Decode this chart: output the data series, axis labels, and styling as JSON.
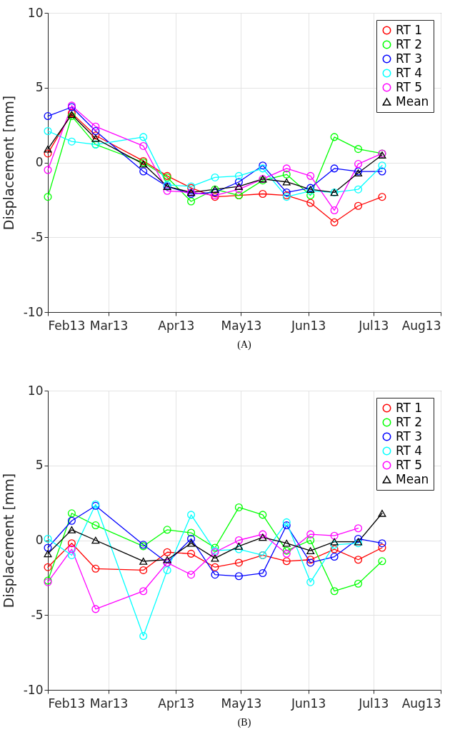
{
  "chart_data": [
    {
      "type": "line",
      "ylabel": "Displacement [mm]",
      "annotations": [
        "(A)"
      ],
      "grid": true,
      "legend": "top right",
      "marker": "circle",
      "x": [
        "2013-02-01",
        "2013-02-12",
        "2013-02-23",
        "2013-03-17",
        "2013-03-28",
        "2013-04-08",
        "2013-04-19",
        "2013-04-30",
        "2013-05-11",
        "2013-05-22",
        "2013-06-02",
        "2013-06-13",
        "2013-06-24",
        "2013-07-05"
      ],
      "xlim": [
        "2013-02-01",
        "2013-08-01"
      ],
      "xticks": [
        {
          "value": "2013-02",
          "label": "Feb13"
        },
        {
          "value": "2013-03",
          "label": "Mar13"
        },
        {
          "value": "2013-04",
          "label": "Apr13"
        },
        {
          "value": "2013-05",
          "label": "May13"
        },
        {
          "value": "2013-06",
          "label": "Jun13"
        },
        {
          "value": "2013-07",
          "label": "Jul13"
        },
        {
          "value": "2013-08",
          "label": "Aug13"
        }
      ],
      "ylim": [
        -10,
        10
      ],
      "yticks": [
        -10,
        -5,
        0,
        5,
        10
      ],
      "series": [
        {
          "name": "RT 1",
          "color": "#ff0000",
          "values": [
            0.6,
            3.3,
            1.8,
            0.1,
            -0.9,
            -1.7,
            -2.3,
            -2.2,
            -2.1,
            -2.2,
            -2.7,
            -4.0,
            -2.9,
            -2.3
          ]
        },
        {
          "name": "RT 2",
          "color": "#00ff00",
          "values": [
            -2.3,
            3.1,
            1.2,
            0.0,
            -1.0,
            -2.6,
            -1.8,
            -2.2,
            -1.2,
            -0.8,
            -2.2,
            1.7,
            0.9,
            0.6
          ]
        },
        {
          "name": "RT 3",
          "color": "#0000ff",
          "values": [
            3.1,
            3.7,
            2.1,
            -0.6,
            -1.6,
            -2.1,
            -2.0,
            -1.3,
            -0.2,
            -2.0,
            -1.7,
            -0.4,
            -0.6,
            -0.6
          ]
        },
        {
          "name": "RT 4",
          "color": "#00ffff",
          "values": [
            2.1,
            1.4,
            1.2,
            1.7,
            -1.5,
            -1.6,
            -1.0,
            -0.9,
            -0.4,
            -2.3,
            -1.9,
            -2.0,
            -1.8,
            -0.2
          ]
        },
        {
          "name": "RT 5",
          "color": "#ff00ff",
          "values": [
            -0.5,
            3.8,
            2.4,
            1.1,
            -1.9,
            -2.0,
            -2.2,
            -1.8,
            -1.1,
            -0.4,
            -0.9,
            -3.2,
            -0.1,
            0.6
          ]
        },
        {
          "name": "Mean",
          "color": "#000000",
          "marker": "triangle",
          "values": [
            0.9,
            3.2,
            1.6,
            -0.1,
            -1.6,
            -2.0,
            -1.8,
            -1.6,
            -1.1,
            -1.3,
            -1.8,
            -2.0,
            -0.7,
            0.5
          ]
        }
      ]
    },
    {
      "type": "line",
      "ylabel": "Displacement [mm]",
      "annotations": [
        "(B)"
      ],
      "grid": true,
      "legend": "top right",
      "marker": "circle",
      "x": [
        "2013-02-01",
        "2013-02-12",
        "2013-02-23",
        "2013-03-17",
        "2013-03-28",
        "2013-04-08",
        "2013-04-19",
        "2013-04-30",
        "2013-05-11",
        "2013-05-22",
        "2013-06-02",
        "2013-06-13",
        "2013-06-24",
        "2013-07-05"
      ],
      "xlim": [
        "2013-02-01",
        "2013-08-01"
      ],
      "xticks": [
        {
          "value": "2013-02",
          "label": "Feb13"
        },
        {
          "value": "2013-03",
          "label": "Mar13"
        },
        {
          "value": "2013-04",
          "label": "Apr13"
        },
        {
          "value": "2013-05",
          "label": "May13"
        },
        {
          "value": "2013-06",
          "label": "Jun13"
        },
        {
          "value": "2013-07",
          "label": "Jul13"
        },
        {
          "value": "2013-08",
          "label": "Aug13"
        }
      ],
      "ylim": [
        -10,
        10
      ],
      "yticks": [
        -10,
        -5,
        0,
        5,
        10
      ],
      "series": [
        {
          "name": "RT 1",
          "color": "#ff0000",
          "values": [
            -1.8,
            -0.2,
            -1.9,
            -2.0,
            -0.8,
            -0.9,
            -1.8,
            -1.5,
            -1.0,
            -1.4,
            -1.3,
            -0.6,
            -1.3,
            -0.5
          ]
        },
        {
          "name": "RT 2",
          "color": "#00ff00",
          "values": [
            -2.7,
            1.8,
            1.0,
            -0.4,
            0.7,
            0.5,
            -0.5,
            2.2,
            1.7,
            -0.7,
            0.0,
            -3.4,
            -2.9,
            -1.4
          ]
        },
        {
          "name": "RT 3",
          "color": "#0000ff",
          "values": [
            -0.5,
            1.3,
            2.3,
            -0.3,
            -1.5,
            0.1,
            -2.3,
            -2.4,
            -2.2,
            1.0,
            -1.5,
            -1.1,
            0.1,
            -0.2
          ]
        },
        {
          "name": "RT 4",
          "color": "#00ffff",
          "values": [
            0.1,
            -1.0,
            2.4,
            -6.4,
            -2.0,
            1.7,
            -0.7,
            -0.6,
            -1.0,
            1.2,
            -2.8,
            -0.3,
            -0.2,
            null
          ]
        },
        {
          "name": "RT 5",
          "color": "#ff00ff",
          "values": [
            -2.8,
            -0.6,
            -4.6,
            -3.4,
            -1.5,
            -2.3,
            -0.8,
            0.0,
            0.4,
            -0.9,
            0.4,
            0.3,
            0.8,
            null
          ]
        },
        {
          "name": "Mean",
          "color": "#000000",
          "marker": "triangle",
          "values": [
            -0.9,
            0.7,
            0.0,
            -1.4,
            -1.3,
            -0.2,
            -1.2,
            -0.4,
            0.2,
            -0.2,
            -0.7,
            -0.1,
            -0.1,
            1.8
          ]
        }
      ]
    }
  ]
}
